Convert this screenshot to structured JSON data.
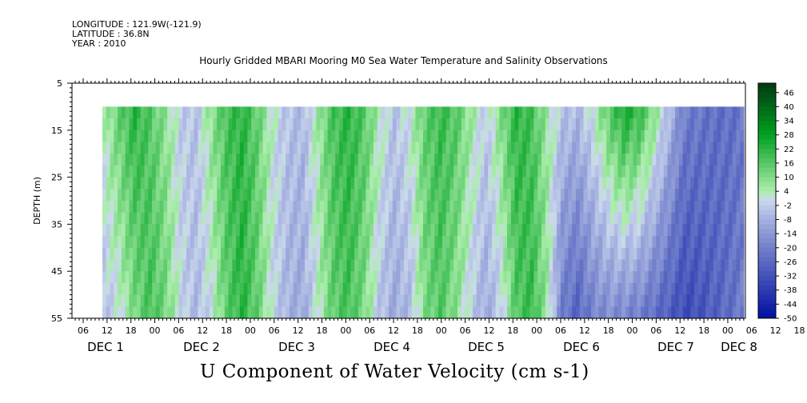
{
  "header": {
    "longitude": "LONGITUDE : 121.9W(-121.9)",
    "latitude": "LATITUDE : 36.8N",
    "year": "YEAR : 2010"
  },
  "chart_data": {
    "type": "heatmap",
    "title": "Hourly Gridded MBARI Mooring M0 Sea Water Temperature and Salinity Observations",
    "xlabel": "U Component of Water Velocity (cm s-1)",
    "ylabel": "DEPTH (m)",
    "y_ticks": [
      5,
      15,
      25,
      35,
      45,
      55
    ],
    "ylim": [
      5,
      55
    ],
    "y_inverted": true,
    "data_depth_range": [
      10,
      55
    ],
    "x_hour_ticks": [
      "06",
      "12",
      "18",
      "00",
      "06",
      "12",
      "18",
      "00",
      "06",
      "12",
      "18",
      "00",
      "06",
      "12",
      "18",
      "00",
      "06",
      "12",
      "18",
      "00",
      "06",
      "12",
      "18",
      "00",
      "06",
      "12",
      "18",
      "00",
      "06",
      "12",
      "18",
      "00"
    ],
    "x_day_labels": [
      "DEC 1",
      "DEC 2",
      "DEC 3",
      "DEC 4",
      "DEC 5",
      "DEC 6",
      "DEC 7",
      "DEC 8"
    ],
    "colorbar_ticks": [
      46,
      40,
      34,
      28,
      22,
      16,
      10,
      4,
      -2,
      -8,
      -14,
      -20,
      -26,
      -32,
      -38,
      -44,
      -50
    ],
    "colorbar_range": [
      -50,
      50
    ],
    "palette": {
      "negative": "#0010a0",
      "neutral": "#ccd8ee",
      "positive": "#00a020",
      "deep_positive": "#003a10"
    },
    "hourly_u_surface": [
      4,
      14,
      22,
      16,
      8,
      -2,
      -4,
      8,
      18,
      22,
      14,
      2,
      -4,
      -6,
      6,
      18,
      22,
      16,
      4,
      -4,
      2,
      14,
      20,
      16,
      6,
      -2,
      10,
      22,
      18,
      6,
      -4,
      -6,
      2,
      14,
      24,
      20,
      8,
      -6,
      -20,
      -22,
      -24,
      -24,
      -22,
      -16,
      -10,
      -6,
      4,
      18,
      16,
      -6,
      -4,
      -6
    ],
    "hourly_u_bottom": [
      -4,
      0,
      10,
      18,
      12,
      0,
      -6,
      0,
      14,
      22,
      14,
      0,
      -8,
      -10,
      2,
      14,
      18,
      10,
      -4,
      -10,
      -6,
      10,
      16,
      8,
      -2,
      -10,
      -2,
      16,
      20,
      6,
      -22,
      -28,
      -20,
      -18,
      -20,
      -22,
      -26,
      -30,
      -34,
      -32,
      -28,
      -24,
      -20,
      -10,
      -2,
      6,
      18,
      16,
      -10,
      -20,
      -24,
      -22
    ]
  }
}
